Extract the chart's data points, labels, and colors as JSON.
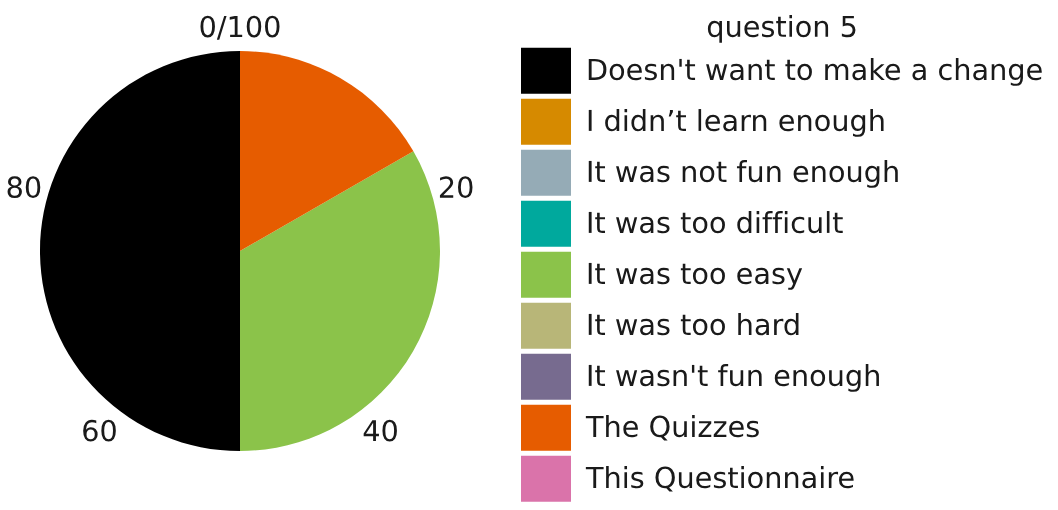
{
  "chart_data": {
    "type": "pie",
    "legend_title": "question 5",
    "categories": [
      "Doesn't want to make a change",
      "I didn’t learn enough",
      "It was not fun enough",
      "It was too difficult",
      "It was too easy",
      "It was too hard",
      "It wasn't fun enough",
      "The Quizzes",
      "This Questionnaire"
    ],
    "values": [
      50,
      0,
      0,
      0,
      33.3,
      0,
      0,
      16.7,
      0
    ],
    "colors": [
      "#000000",
      "#d68a00",
      "#95abb6",
      "#00a99d",
      "#8bc34a",
      "#b8b678",
      "#776b8f",
      "#e65c00",
      "#da73aa"
    ],
    "annotations": [
      "0/100",
      "20",
      "40",
      "60",
      "80"
    ],
    "legend": "right"
  }
}
